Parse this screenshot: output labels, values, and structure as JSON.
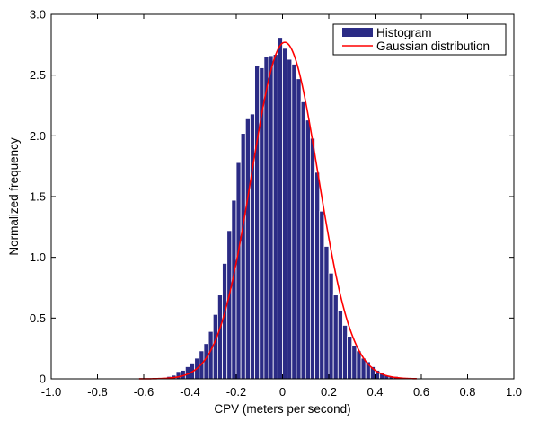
{
  "chart_data": {
    "type": "bar",
    "title": "",
    "xlabel": "CPV (meters per second)",
    "ylabel": "Normalized frequency",
    "xlim": [
      -1.0,
      1.0
    ],
    "ylim": [
      0,
      3.0
    ],
    "x_ticks": [
      "-1.0",
      "-0.8",
      "-0.6",
      "-0.4",
      "-0.2",
      "0",
      "0.2",
      "0.4",
      "0.6",
      "0.8",
      "1.0"
    ],
    "x_tick_values": [
      -1.0,
      -0.8,
      -0.6,
      -0.4,
      -0.2,
      0,
      0.2,
      0.4,
      0.6,
      0.8,
      1.0
    ],
    "y_ticks": [
      "0",
      "0.5",
      "1.0",
      "1.5",
      "2.0",
      "2.5",
      "3.0"
    ],
    "y_tick_values": [
      0,
      0.5,
      1.0,
      1.5,
      2.0,
      2.5,
      3.0
    ],
    "grid": false,
    "legend": {
      "position": "top-right",
      "entries": [
        "Histogram",
        "Gaussian distribution"
      ]
    },
    "colors": {
      "histogram": "#2b2b85",
      "gaussian": "#ff0000"
    },
    "bin_width": 0.02,
    "histogram": {
      "name": "Histogram",
      "bin_centers": [
        -0.63,
        -0.61,
        -0.59,
        -0.57,
        -0.55,
        -0.53,
        -0.51,
        -0.49,
        -0.47,
        -0.45,
        -0.43,
        -0.41,
        -0.39,
        -0.37,
        -0.35,
        -0.33,
        -0.31,
        -0.29,
        -0.27,
        -0.25,
        -0.23,
        -0.21,
        -0.19,
        -0.17,
        -0.15,
        -0.13,
        -0.11,
        -0.09,
        -0.07,
        -0.05,
        -0.03,
        -0.01,
        0.01,
        0.03,
        0.05,
        0.07,
        0.09,
        0.11,
        0.13,
        0.15,
        0.17,
        0.19,
        0.21,
        0.23,
        0.25,
        0.27,
        0.29,
        0.31,
        0.33,
        0.35,
        0.37,
        0.39,
        0.41,
        0.43,
        0.45,
        0.47,
        0.49,
        0.51,
        0.53,
        0.55,
        0.57,
        0.59
      ],
      "values": [
        0.0,
        0.0,
        0.0,
        0.0,
        0.0,
        0.01,
        0.01,
        0.02,
        0.03,
        0.06,
        0.07,
        0.1,
        0.13,
        0.17,
        0.23,
        0.29,
        0.39,
        0.53,
        0.69,
        0.95,
        1.22,
        1.47,
        1.78,
        2.02,
        2.14,
        2.18,
        2.58,
        2.56,
        2.65,
        2.66,
        2.67,
        2.81,
        2.72,
        2.63,
        2.59,
        2.47,
        2.28,
        2.13,
        1.98,
        1.7,
        1.38,
        1.09,
        0.87,
        0.69,
        0.56,
        0.44,
        0.35,
        0.27,
        0.23,
        0.17,
        0.14,
        0.1,
        0.07,
        0.05,
        0.03,
        0.02,
        0.02,
        0.01,
        0.0,
        0.0,
        0.0,
        0.0
      ]
    },
    "gaussian": {
      "name": "Gaussian distribution",
      "mean": 0.01,
      "peak": 2.77,
      "sigma": 0.144,
      "x_range": [
        -0.62,
        0.58
      ]
    }
  }
}
